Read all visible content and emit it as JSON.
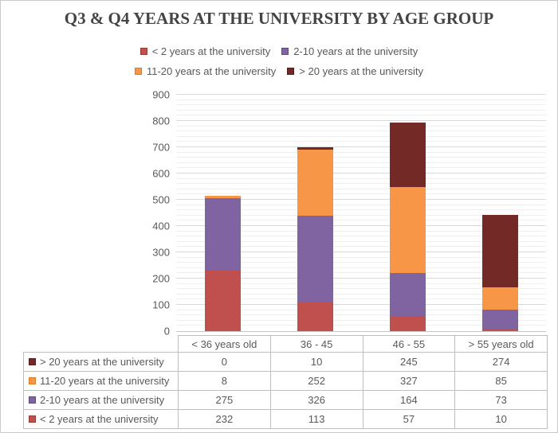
{
  "title": "Q3 & Q4 YEARS AT THE UNIVERSITY BY AGE GROUP",
  "chart_data": {
    "type": "bar",
    "stacked": true,
    "title": "Q3 & Q4 YEARS AT THE UNIVERSITY BY AGE GROUP",
    "categories": [
      "< 36 years old",
      "36 - 45",
      "46 - 55",
      "> 55 years old"
    ],
    "series": [
      {
        "name": "< 2 years at the university",
        "color": "#c0504d",
        "key_border": "#963a38",
        "values": [
          232,
          113,
          57,
          10
        ]
      },
      {
        "name": "2-10 years at the university",
        "color": "#8064a2",
        "key_border": "#5f4a7d",
        "values": [
          275,
          326,
          164,
          73
        ]
      },
      {
        "name": "11-20 years at the university",
        "color": "#f79646",
        "key_border": "#d97c26",
        "values": [
          8,
          252,
          327,
          85
        ]
      },
      {
        "name": "> 20 years at the university",
        "color": "#732a26",
        "key_border": "#521e1b",
        "values": [
          0,
          10,
          245,
          274
        ]
      }
    ],
    "stack_totals": [
      515,
      701,
      793,
      442
    ],
    "ylim": [
      0,
      900
    ],
    "y_major_step": 100,
    "y_minor_step": 20,
    "y_tick_labels": [
      "0",
      "100",
      "200",
      "300",
      "400",
      "500",
      "600",
      "700",
      "800",
      "900"
    ],
    "xlabel": "",
    "ylabel": "",
    "grid": "major-and-minor-horizontal",
    "legend_position": "top",
    "legend_rows": [
      [
        0,
        1
      ],
      [
        2,
        3
      ]
    ],
    "data_table_shown": true,
    "data_table_row_order": [
      "> 20 years at the university",
      "11-20 years at the university",
      "2-10 years at the university",
      "< 2 years at the university"
    ]
  }
}
